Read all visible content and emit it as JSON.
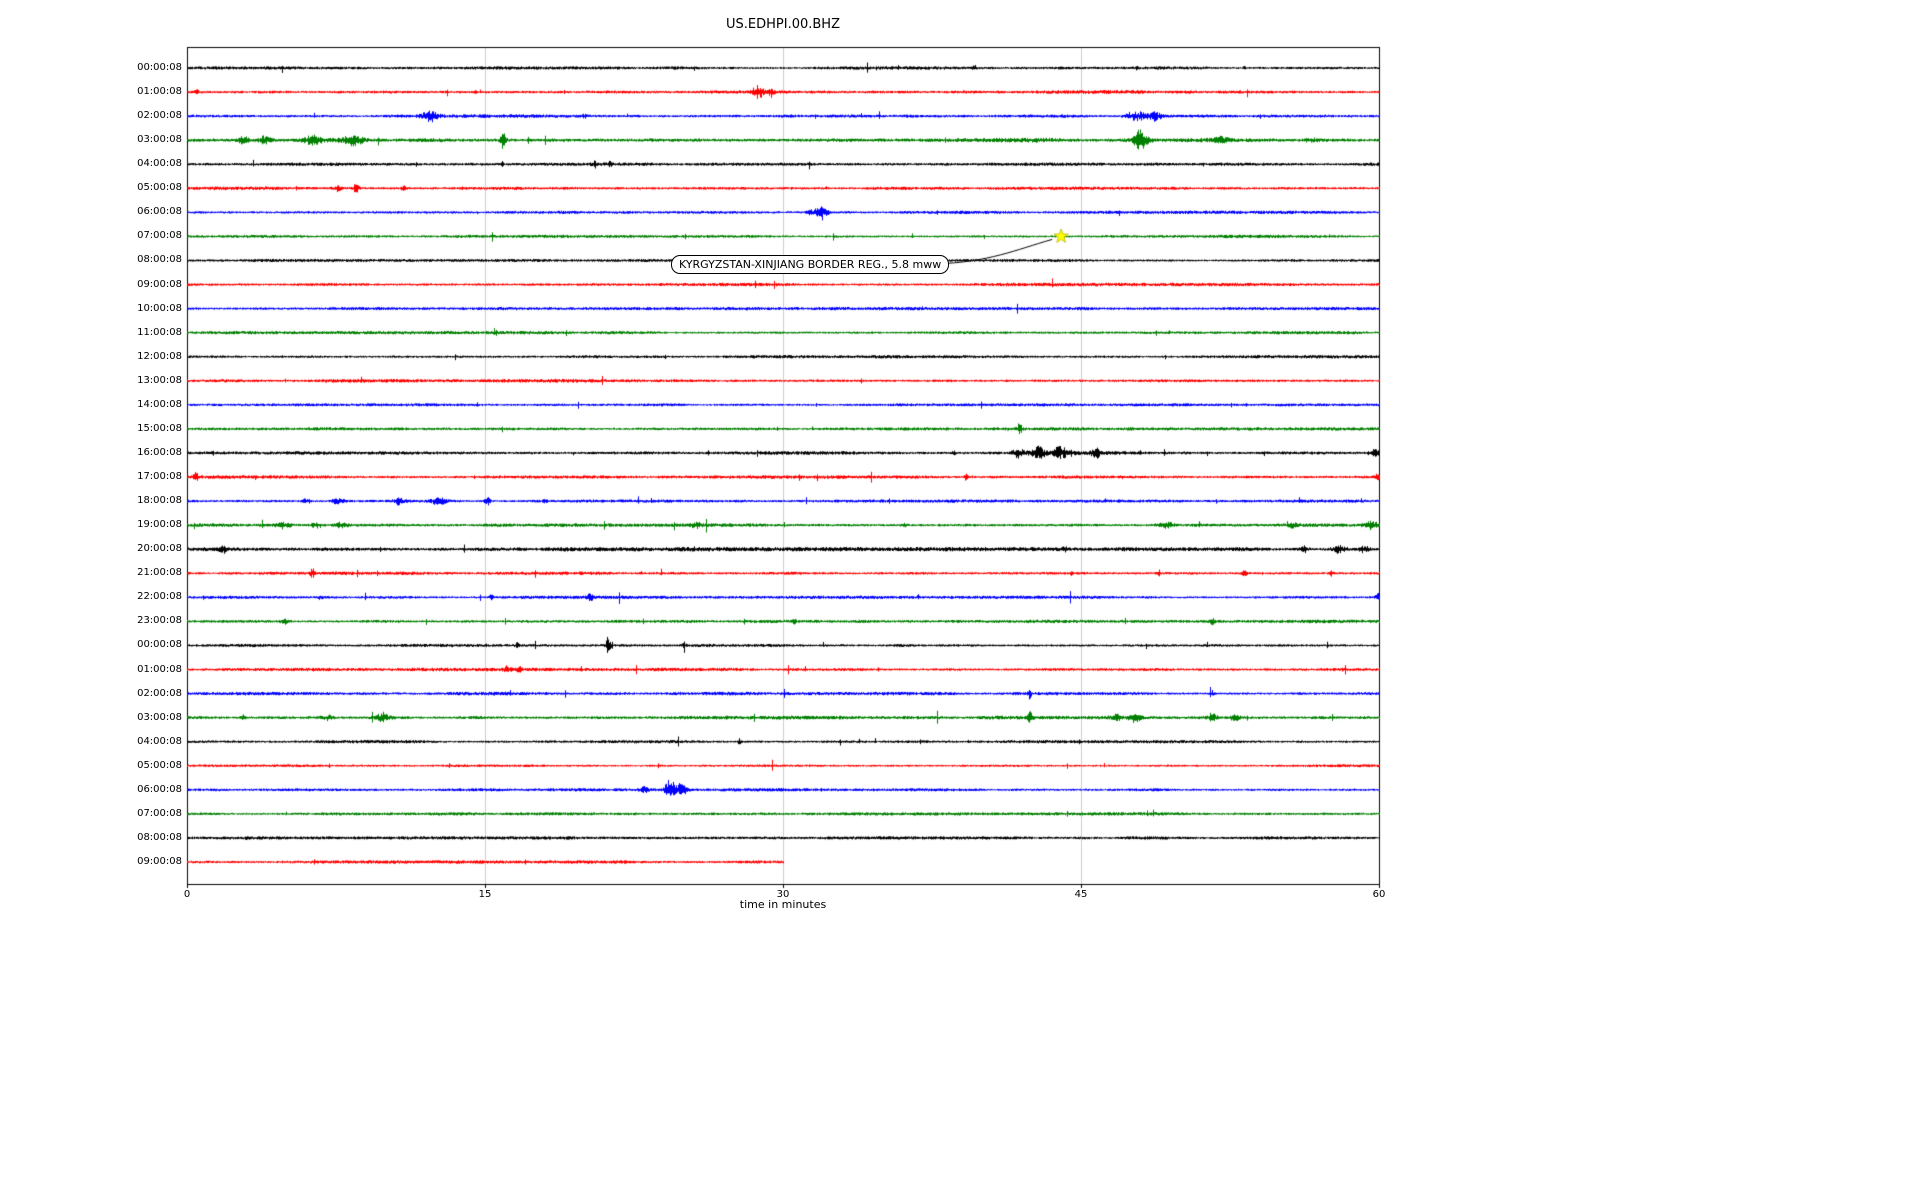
{
  "chart_data": {
    "type": "line",
    "variant": "seismogram-helicorder-dayplot",
    "title": "US.EDHPI.00.BHZ",
    "xlabel": "time in minutes",
    "xlim": [
      0,
      60
    ],
    "x_ticks": [
      {
        "value": 0,
        "label": "0"
      },
      {
        "value": 15,
        "label": "15"
      },
      {
        "value": 30,
        "label": "30"
      },
      {
        "value": 45,
        "label": "45"
      },
      {
        "value": 60,
        "label": "60"
      }
    ],
    "minutes_per_row": 60,
    "grid": true,
    "colors": {
      "black": "#000000",
      "red": "#ff0000",
      "blue": "#0000ff",
      "green": "#008000",
      "grid": "#cccccc",
      "frame": "#000000"
    },
    "color_cycle": [
      "black",
      "red",
      "blue",
      "green"
    ],
    "rows": [
      {
        "label": "00:00:08",
        "color": "black",
        "base": 1.3,
        "extent": 60,
        "bursts": [
          [
            39.6,
            0.05,
            5
          ],
          [
            47.8,
            0.04,
            1.5
          ],
          [
            53.2,
            0.05,
            3.5
          ]
        ]
      },
      {
        "label": "01:00:08",
        "color": "red",
        "base": 1.5,
        "extent": 60,
        "bursts": [
          [
            0.5,
            0.08,
            2
          ],
          [
            14.5,
            0.07,
            2.5
          ],
          [
            28.7,
            0.18,
            6
          ],
          [
            29.4,
            0.12,
            4
          ]
        ]
      },
      {
        "label": "02:00:08",
        "color": "blue",
        "base": 1.4,
        "extent": 60,
        "bursts": [
          [
            12.2,
            0.3,
            5.5
          ],
          [
            20.0,
            0.1,
            2
          ],
          [
            47.8,
            0.35,
            5
          ],
          [
            48.7,
            0.25,
            4
          ]
        ]
      },
      {
        "label": "03:00:08",
        "color": "green",
        "base": 1.8,
        "extent": 60,
        "bursts": [
          [
            2.8,
            0.2,
            4.5
          ],
          [
            3.9,
            0.25,
            5
          ],
          [
            6.3,
            0.3,
            4.5
          ],
          [
            8.3,
            0.35,
            4.5
          ],
          [
            15.9,
            0.1,
            10.5
          ],
          [
            48.0,
            0.25,
            10.5
          ],
          [
            52.0,
            0.3,
            3.5
          ],
          [
            56.6,
            0.25,
            2.5
          ]
        ]
      },
      {
        "label": "04:00:08",
        "color": "black",
        "base": 1.3,
        "extent": 60,
        "bursts": [
          [
            15.85,
            0.05,
            7
          ],
          [
            20.5,
            0.08,
            2.5
          ],
          [
            21.3,
            0.07,
            2.5
          ]
        ]
      },
      {
        "label": "05:00:08",
        "color": "red",
        "base": 1.4,
        "extent": 60,
        "bursts": [
          [
            7.6,
            0.08,
            3.5
          ],
          [
            8.5,
            0.1,
            5
          ],
          [
            10.9,
            0.08,
            3.5
          ],
          [
            13.8,
            0.06,
            2
          ]
        ]
      },
      {
        "label": "06:00:08",
        "color": "blue",
        "base": 1.3,
        "extent": 60,
        "bursts": [
          [
            31.3,
            0.12,
            4
          ],
          [
            31.9,
            0.22,
            9.5
          ]
        ]
      },
      {
        "label": "07:00:08",
        "color": "green",
        "base": 1.3,
        "extent": 60,
        "bursts": []
      },
      {
        "label": "08:00:08",
        "color": "black",
        "base": 1.2,
        "extent": 60,
        "bursts": []
      },
      {
        "label": "09:00:08",
        "color": "red",
        "base": 1.4,
        "extent": 60,
        "bursts": []
      },
      {
        "label": "10:00:08",
        "color": "blue",
        "base": 1.3,
        "extent": 60,
        "bursts": [
          [
            18.2,
            0.08,
            1.5
          ]
        ]
      },
      {
        "label": "11:00:08",
        "color": "green",
        "base": 1.3,
        "extent": 60,
        "bursts": []
      },
      {
        "label": "12:00:08",
        "color": "black",
        "base": 1.3,
        "extent": 60,
        "bursts": []
      },
      {
        "label": "13:00:08",
        "color": "red",
        "base": 1.4,
        "extent": 60,
        "bursts": []
      },
      {
        "label": "14:00:08",
        "color": "blue",
        "base": 1.2,
        "extent": 60,
        "bursts": []
      },
      {
        "label": "15:00:08",
        "color": "green",
        "base": 1.3,
        "extent": 60,
        "bursts": [
          [
            41.9,
            0.07,
            6
          ],
          [
            47.5,
            0.05,
            2
          ]
        ]
      },
      {
        "label": "16:00:08",
        "color": "black",
        "base": 1.4,
        "extent": 60,
        "bursts": [
          [
            38.6,
            0.08,
            2.5
          ],
          [
            41.8,
            0.2,
            5.5
          ],
          [
            42.8,
            0.25,
            7
          ],
          [
            44.0,
            0.35,
            5.5
          ],
          [
            45.7,
            0.18,
            4
          ],
          [
            59.8,
            0.12,
            7.5
          ]
        ]
      },
      {
        "label": "17:00:08",
        "color": "red",
        "base": 1.4,
        "extent": 60,
        "bursts": [
          [
            0.4,
            0.08,
            5
          ],
          [
            39.2,
            0.08,
            4
          ],
          [
            47.0,
            0.06,
            2.5
          ],
          [
            59.9,
            0.08,
            5
          ]
        ]
      },
      {
        "label": "18:00:08",
        "color": "blue",
        "base": 1.3,
        "extent": 60,
        "bursts": [
          [
            6.0,
            0.18,
            3
          ],
          [
            7.6,
            0.2,
            4.5
          ],
          [
            10.6,
            0.18,
            3
          ],
          [
            12.7,
            0.25,
            4.5
          ],
          [
            15.1,
            0.1,
            5
          ],
          [
            18.0,
            0.08,
            2
          ]
        ]
      },
      {
        "label": "19:00:08",
        "color": "green",
        "base": 1.5,
        "extent": 60,
        "bursts": [
          [
            4.8,
            0.25,
            4
          ],
          [
            6.5,
            0.2,
            3.5
          ],
          [
            7.8,
            0.25,
            4
          ],
          [
            25.6,
            0.12,
            3.5
          ],
          [
            36.1,
            0.08,
            2.5
          ],
          [
            49.3,
            0.3,
            4
          ],
          [
            55.6,
            0.15,
            2.5
          ],
          [
            59.6,
            0.2,
            4
          ]
        ]
      },
      {
        "label": "20:00:08",
        "color": "black",
        "base": 1.7,
        "extent": 60,
        "bursts": [
          [
            1.8,
            0.12,
            3.5
          ],
          [
            44.2,
            0.08,
            2.5
          ],
          [
            56.2,
            0.15,
            4.5
          ],
          [
            58.0,
            0.25,
            5.5
          ],
          [
            59.2,
            0.2,
            5.5
          ]
        ]
      },
      {
        "label": "21:00:08",
        "color": "red",
        "base": 1.4,
        "extent": 60,
        "bursts": [
          [
            6.3,
            0.08,
            5
          ],
          [
            44.5,
            0.06,
            2
          ],
          [
            48.9,
            0.08,
            4
          ],
          [
            53.2,
            0.12,
            3.5
          ],
          [
            57.6,
            0.1,
            3.5
          ]
        ]
      },
      {
        "label": "22:00:08",
        "color": "blue",
        "base": 1.3,
        "extent": 60,
        "bursts": [
          [
            6.7,
            0.06,
            4
          ],
          [
            15.3,
            0.08,
            3
          ],
          [
            20.3,
            0.1,
            4
          ],
          [
            36.8,
            0.06,
            2
          ],
          [
            59.9,
            0.12,
            5
          ]
        ]
      },
      {
        "label": "23:00:08",
        "color": "green",
        "base": 1.4,
        "extent": 60,
        "bursts": [
          [
            4.9,
            0.1,
            4
          ],
          [
            30.5,
            0.08,
            2
          ],
          [
            51.6,
            0.08,
            4
          ]
        ]
      },
      {
        "label": "00:00:08",
        "color": "black",
        "base": 1.3,
        "extent": 60,
        "bursts": [
          [
            16.6,
            0.08,
            3
          ],
          [
            21.2,
            0.08,
            11.5
          ],
          [
            25.0,
            0.08,
            2.5
          ]
        ]
      },
      {
        "label": "01:00:08",
        "color": "red",
        "base": 1.4,
        "extent": 60,
        "bursts": [
          [
            16.1,
            0.12,
            4
          ],
          [
            16.7,
            0.1,
            3
          ]
        ]
      },
      {
        "label": "02:00:08",
        "color": "blue",
        "base": 1.4,
        "extent": 60,
        "bursts": [
          [
            42.4,
            0.06,
            6
          ],
          [
            51.6,
            0.06,
            5
          ]
        ]
      },
      {
        "label": "03:00:08",
        "color": "green",
        "base": 1.5,
        "extent": 60,
        "bursts": [
          [
            2.8,
            0.08,
            4
          ],
          [
            7.0,
            0.22,
            3
          ],
          [
            9.8,
            0.25,
            4
          ],
          [
            42.4,
            0.08,
            6.5
          ],
          [
            46.8,
            0.25,
            5
          ],
          [
            47.7,
            0.2,
            4.5
          ],
          [
            51.6,
            0.15,
            6
          ],
          [
            52.7,
            0.2,
            4.5
          ]
        ]
      },
      {
        "label": "04:00:08",
        "color": "black",
        "base": 1.3,
        "extent": 60,
        "bursts": [
          [
            27.8,
            0.05,
            5
          ]
        ]
      },
      {
        "label": "05:00:08",
        "color": "red",
        "base": 1.2,
        "extent": 60,
        "bursts": []
      },
      {
        "label": "06:00:08",
        "color": "blue",
        "base": 1.3,
        "extent": 60,
        "bursts": [
          [
            23.0,
            0.12,
            3
          ],
          [
            24.3,
            0.2,
            8
          ],
          [
            24.9,
            0.18,
            6
          ]
        ]
      },
      {
        "label": "07:00:08",
        "color": "green",
        "base": 1.3,
        "extent": 60,
        "bursts": []
      },
      {
        "label": "08:00:08",
        "color": "black",
        "base": 1.3,
        "extent": 60,
        "bursts": [
          [
            3.0,
            0.06,
            2
          ]
        ]
      },
      {
        "label": "09:00:08",
        "color": "red",
        "base": 1.4,
        "extent": 30,
        "bursts": []
      }
    ],
    "event": {
      "label": "KYRGYZSTAN-XINJIANG BORDER REG., 5.8 mww",
      "region": "KYRGYZSTAN-XINJIANG BORDER REG.",
      "magnitude": "5.8 mww",
      "row_index": 7,
      "time_label": "07:00:08",
      "minute": 44,
      "marker": "star",
      "marker_color": "#ffff00"
    }
  }
}
